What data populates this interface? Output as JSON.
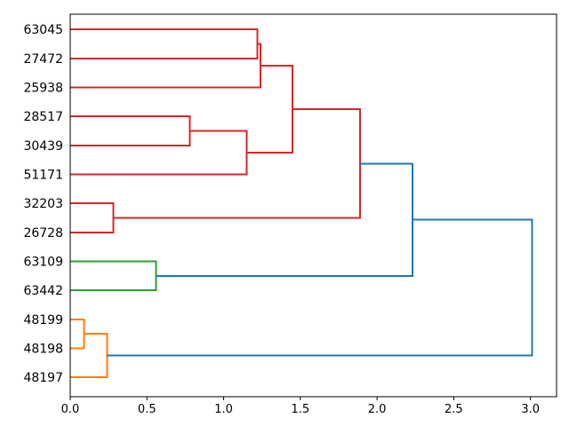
{
  "figure": {
    "background": "#ffffff"
  },
  "chart_data": {
    "type": "dendrogram",
    "orientation": "right",
    "title": "",
    "leaf_labels": [
      "63045",
      "27472",
      "25938",
      "28517",
      "30439",
      "51171",
      "32203",
      "26728",
      "63109",
      "63442",
      "48199",
      "48198",
      "48197"
    ],
    "links": [
      {
        "a": "L0",
        "b": "L1",
        "height": 1.22,
        "color": "#d62728"
      },
      {
        "a": "N0",
        "b": "L2",
        "height": 1.24,
        "color": "#d62728"
      },
      {
        "a": "L3",
        "b": "L4",
        "height": 0.78,
        "color": "#d62728"
      },
      {
        "a": "N2",
        "b": "L5",
        "height": 1.15,
        "color": "#d62728"
      },
      {
        "a": "N1",
        "b": "N3",
        "height": 1.45,
        "color": "#d62728"
      },
      {
        "a": "L6",
        "b": "L7",
        "height": 0.28,
        "color": "#d62728"
      },
      {
        "a": "N4",
        "b": "N5",
        "height": 1.89,
        "color": "#d62728"
      },
      {
        "a": "L8",
        "b": "L9",
        "height": 0.56,
        "color": "#2ca02c"
      },
      {
        "a": "L10",
        "b": "L11",
        "height": 0.09,
        "color": "#ff7f0e"
      },
      {
        "a": "N8",
        "b": "L12",
        "height": 0.24,
        "color": "#ff7f0e"
      },
      {
        "a": "N6",
        "b": "N7",
        "height": 2.23,
        "color": "#1f77b4"
      },
      {
        "a": "N10",
        "b": "N9",
        "height": 3.01,
        "color": "#1f77b4"
      }
    ],
    "x_axis": {
      "tick_labels": [
        "0.0",
        "0.5",
        "1.0",
        "1.5",
        "2.0",
        "2.5",
        "3.0"
      ],
      "tick_values": [
        0,
        0.5,
        1.0,
        1.5,
        2.0,
        2.5,
        3.0
      ],
      "range": [
        0,
        3.17
      ]
    },
    "colors": {
      "cluster_1_red": "#d62728",
      "cluster_2_green": "#2ca02c",
      "cluster_3_orange": "#ff7f0e",
      "above_threshold_blue": "#1f77b4",
      "axis": "#000000",
      "text": "#000000"
    },
    "grid": false,
    "legend": false
  }
}
